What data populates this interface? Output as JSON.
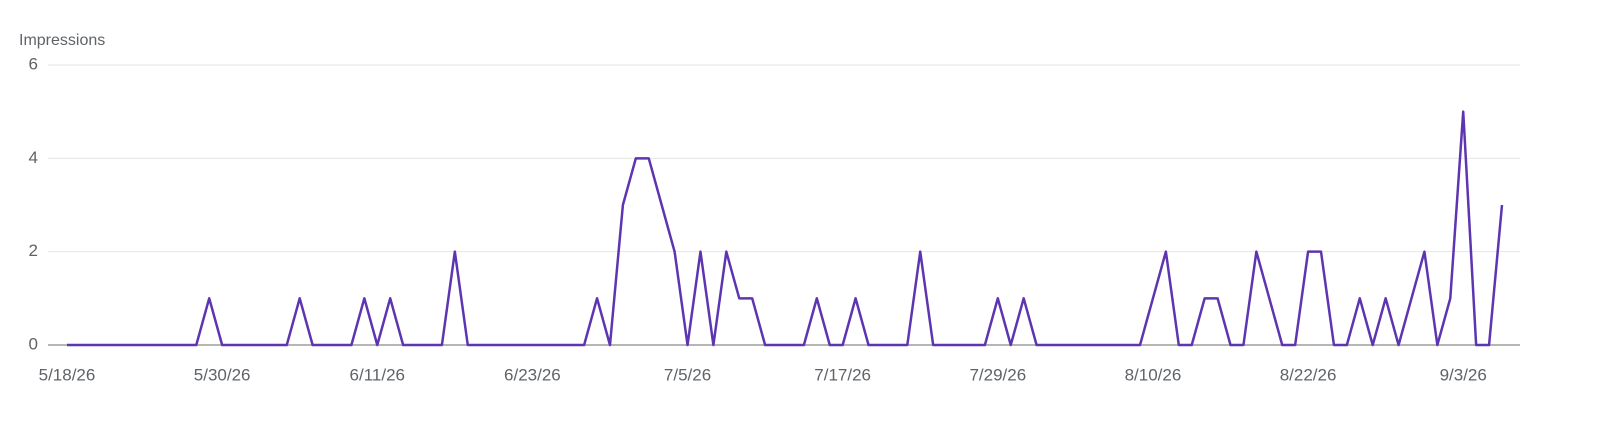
{
  "chart_data": {
    "type": "line",
    "y_label": "Impressions",
    "categories": [
      "5/18/26",
      null,
      null,
      null,
      null,
      null,
      null,
      null,
      null,
      null,
      null,
      null,
      "5/30/26",
      null,
      null,
      null,
      null,
      null,
      null,
      null,
      null,
      null,
      null,
      null,
      "6/11/26",
      null,
      null,
      null,
      null,
      null,
      null,
      null,
      null,
      null,
      null,
      null,
      "6/23/26",
      null,
      null,
      null,
      null,
      null,
      null,
      null,
      null,
      null,
      null,
      null,
      "7/5/26",
      null,
      null,
      null,
      null,
      null,
      null,
      null,
      null,
      null,
      null,
      null,
      "7/17/26",
      null,
      null,
      null,
      null,
      null,
      null,
      null,
      null,
      null,
      null,
      null,
      "7/29/26",
      null,
      null,
      null,
      null,
      null,
      null,
      null,
      null,
      null,
      null,
      null,
      "8/10/26",
      null,
      null,
      null,
      null,
      null,
      null,
      null,
      null,
      null,
      null,
      null,
      "8/22/26",
      null,
      null,
      null,
      null,
      null,
      null,
      null,
      null,
      null,
      null,
      null,
      "9/3/26",
      null,
      null,
      null
    ],
    "values": [
      0,
      0,
      0,
      0,
      0,
      0,
      0,
      0,
      0,
      0,
      0,
      1,
      0,
      0,
      0,
      0,
      0,
      0,
      1,
      0,
      0,
      0,
      0,
      1,
      0,
      1,
      0,
      0,
      0,
      0,
      2,
      0,
      0,
      0,
      0,
      0,
      0,
      0,
      0,
      0,
      0,
      1,
      0,
      3,
      4,
      4,
      3,
      2,
      0,
      2,
      0,
      2,
      1,
      1,
      0,
      0,
      0,
      0,
      1,
      0,
      0,
      1,
      0,
      0,
      0,
      0,
      2,
      0,
      0,
      0,
      0,
      0,
      1,
      0,
      1,
      0,
      0,
      0,
      0,
      0,
      0,
      0,
      0,
      0,
      1,
      2,
      0,
      0,
      1,
      1,
      0,
      0,
      2,
      1,
      0,
      0,
      2,
      2,
      0,
      0,
      1,
      0,
      1,
      0,
      1,
      2,
      0,
      1,
      5,
      0,
      0,
      3
    ],
    "color": "#5e35b1",
    "ylim": [
      0,
      6
    ],
    "yticks": [
      0,
      2,
      4,
      6
    ],
    "grid": true
  }
}
